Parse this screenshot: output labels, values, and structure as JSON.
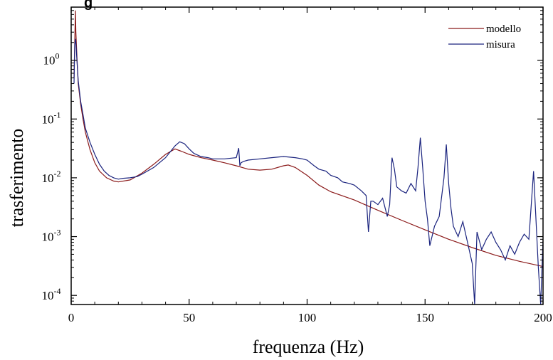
{
  "chart_data": {
    "type": "line",
    "title_fragment": "g",
    "xlabel": "frequenza (Hz)",
    "ylabel": "trasferimento",
    "xlim": [
      0,
      200
    ],
    "ylim": [
      7e-05,
      8
    ],
    "yscale": "log",
    "x_ticks": [
      0,
      50,
      100,
      150,
      200
    ],
    "x_tick_labels": [
      "0",
      "50",
      "100",
      "150",
      "200"
    ],
    "y_ticks": [
      0.0001,
      0.001,
      0.01,
      0.1,
      1
    ],
    "y_tick_labels": [
      {
        "base": "10",
        "exp": "-4"
      },
      {
        "base": "10",
        "exp": "-3"
      },
      {
        "base": "10",
        "exp": "-2"
      },
      {
        "base": "10",
        "exp": "-1"
      },
      {
        "base": "10",
        "exp": "0"
      }
    ],
    "grid": false,
    "legend_position": "top-right",
    "series": [
      {
        "name": "modello",
        "color": "#8b1a1a",
        "x": [
          1.2,
          1.5,
          1.8,
          2.0,
          2.5,
          3,
          4,
          5,
          6,
          8,
          10,
          12,
          15,
          18,
          20,
          25,
          30,
          35,
          40,
          44,
          47,
          50,
          55,
          60,
          65,
          70,
          75,
          80,
          85,
          90,
          92,
          95,
          100,
          105,
          110,
          120,
          130,
          140,
          150,
          160,
          170,
          180,
          190,
          200
        ],
        "y": [
          0.5,
          2.0,
          7.0,
          3.0,
          1.0,
          0.4,
          0.18,
          0.1,
          0.06,
          0.03,
          0.018,
          0.013,
          0.01,
          0.0088,
          0.0085,
          0.0092,
          0.012,
          0.017,
          0.025,
          0.031,
          0.028,
          0.025,
          0.022,
          0.02,
          0.018,
          0.016,
          0.014,
          0.0135,
          0.014,
          0.016,
          0.0165,
          0.015,
          0.011,
          0.0075,
          0.0058,
          0.0042,
          0.0028,
          0.0019,
          0.0013,
          0.0009,
          0.00065,
          0.00048,
          0.00038,
          0.00031
        ]
      },
      {
        "name": "misura",
        "color": "#1a237e",
        "x": [
          1.2,
          1.5,
          1.8,
          2.0,
          2.5,
          3,
          4,
          5,
          6,
          8,
          10,
          12,
          14,
          16,
          18,
          20,
          22,
          25,
          28,
          30,
          35,
          40,
          44,
          46,
          48,
          50,
          52,
          55,
          58,
          60,
          65,
          70,
          71,
          71.5,
          72,
          73,
          75,
          80,
          85,
          90,
          95,
          98,
          100,
          103,
          105,
          108,
          110,
          113,
          115,
          118,
          120,
          123,
          125,
          126,
          127,
          128,
          130,
          132,
          134,
          135,
          136,
          137,
          138,
          140,
          142,
          144,
          146,
          147,
          148,
          149,
          150,
          151,
          152,
          154,
          156,
          158,
          159,
          160,
          161,
          162,
          164,
          166,
          168,
          170,
          171,
          172,
          174,
          176,
          178,
          180,
          182,
          184,
          186,
          188,
          190,
          192,
          194,
          196,
          198,
          199,
          200
        ],
        "y": [
          0.4,
          1.8,
          2.3,
          2.0,
          0.9,
          0.45,
          0.2,
          0.12,
          0.07,
          0.04,
          0.025,
          0.017,
          0.013,
          0.011,
          0.01,
          0.0095,
          0.0098,
          0.01,
          0.0105,
          0.0115,
          0.015,
          0.022,
          0.035,
          0.041,
          0.038,
          0.031,
          0.026,
          0.023,
          0.022,
          0.021,
          0.021,
          0.022,
          0.032,
          0.016,
          0.018,
          0.019,
          0.02,
          0.021,
          0.022,
          0.023,
          0.022,
          0.021,
          0.02,
          0.016,
          0.014,
          0.013,
          0.011,
          0.01,
          0.0085,
          0.008,
          0.0075,
          0.006,
          0.005,
          0.0012,
          0.004,
          0.004,
          0.0035,
          0.0045,
          0.0022,
          0.0035,
          0.022,
          0.014,
          0.007,
          0.006,
          0.0055,
          0.008,
          0.006,
          0.015,
          0.048,
          0.015,
          0.004,
          0.002,
          0.0007,
          0.0015,
          0.0022,
          0.01,
          0.037,
          0.008,
          0.003,
          0.0015,
          0.001,
          0.0018,
          0.0008,
          0.00035,
          7e-05,
          0.0012,
          0.0006,
          0.0009,
          0.0012,
          0.0008,
          0.0006,
          0.0004,
          0.0007,
          0.0005,
          0.0008,
          0.0011,
          0.0009,
          0.013,
          0.0003,
          7e-05,
          0.0009
        ]
      }
    ]
  }
}
